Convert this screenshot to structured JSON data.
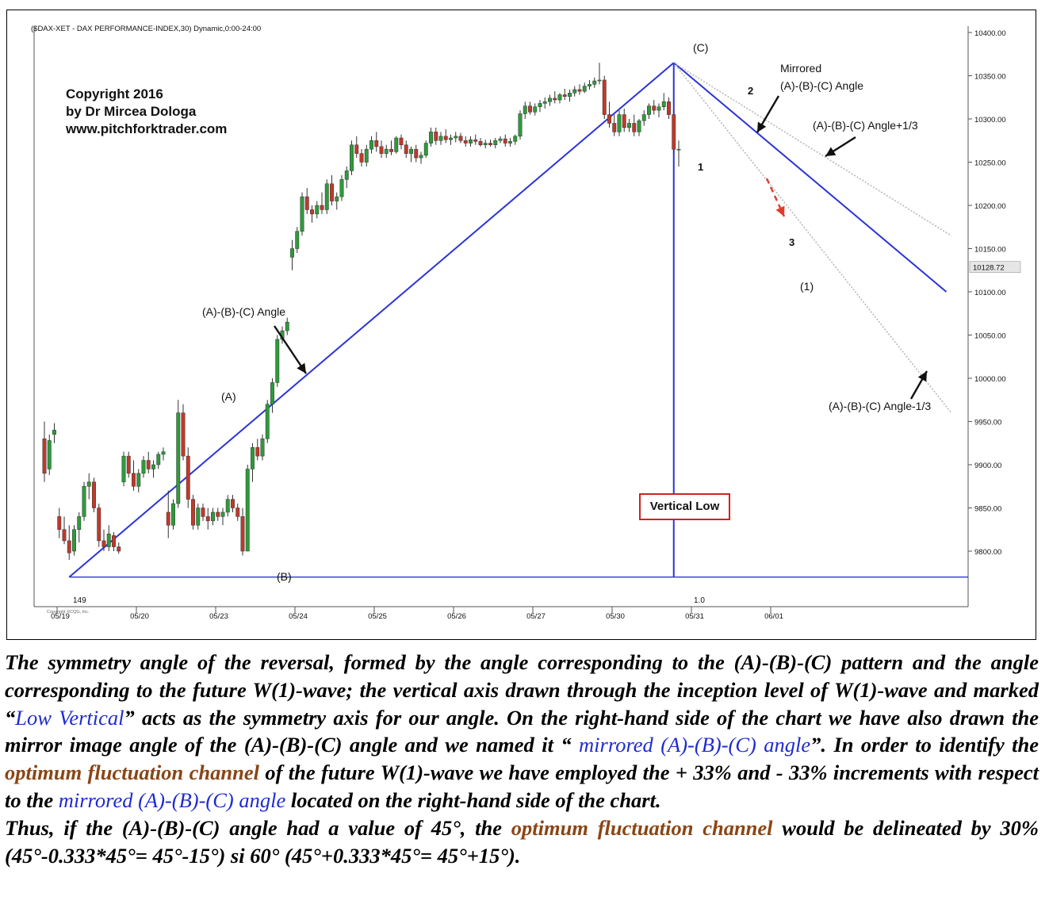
{
  "chart_data": {
    "type": "candlestick",
    "header": "($DAX-XET - DAX PERFORMANCE-INDEX,30) Dynamic,0:00-24:00",
    "copyright": [
      "Copyright 2016",
      "by Dr Mircea Dologa",
      "www.pitchforktrader.com"
    ],
    "y_ticks": [
      10400,
      10350,
      10300,
      10250,
      10200,
      10150,
      10100,
      10050,
      10000,
      9950,
      9900,
      9850,
      9800
    ],
    "y_tick_labels": [
      "10400.00",
      "10350.00",
      "10300.00",
      "10250.00",
      "10200.00",
      "10150.00",
      "10100.00",
      "10050.00",
      "10000.00",
      "9950.00",
      "9900.00",
      "9850.00",
      "9800.00"
    ],
    "ylim": [
      9750,
      10420
    ],
    "last_price_label": "10128.72",
    "last_price": 10128.72,
    "x_tick_labels": [
      "05/19",
      "05/20",
      "05/23",
      "05/24",
      "05/25",
      "05/26",
      "05/27",
      "05/30",
      "05/31",
      "06/01"
    ],
    "x_tick_positions": [
      0,
      16,
      32,
      48,
      64,
      80,
      96,
      112,
      128,
      144
    ],
    "candles": [
      {
        "o": 9930,
        "h": 9950,
        "l": 9880,
        "c": 9890
      },
      {
        "o": 9895,
        "h": 9935,
        "l": 9888,
        "c": 9928
      },
      {
        "o": 9935,
        "h": 9948,
        "l": 9925,
        "c": 9940
      },
      {
        "o": 9840,
        "h": 9850,
        "l": 9815,
        "c": 9825
      },
      {
        "o": 9825,
        "h": 9840,
        "l": 9808,
        "c": 9812
      },
      {
        "o": 9812,
        "h": 9830,
        "l": 9790,
        "c": 9798
      },
      {
        "o": 9800,
        "h": 9830,
        "l": 9795,
        "c": 9825
      },
      {
        "o": 9825,
        "h": 9845,
        "l": 9810,
        "c": 9840
      },
      {
        "o": 9840,
        "h": 9880,
        "l": 9835,
        "c": 9875
      },
      {
        "o": 9875,
        "h": 9890,
        "l": 9860,
        "c": 9880
      },
      {
        "o": 9880,
        "h": 9885,
        "l": 9845,
        "c": 9850
      },
      {
        "o": 9850,
        "h": 9855,
        "l": 9805,
        "c": 9812
      },
      {
        "o": 9812,
        "h": 9825,
        "l": 9800,
        "c": 9805
      },
      {
        "o": 9805,
        "h": 9830,
        "l": 9800,
        "c": 9820
      },
      {
        "o": 9818,
        "h": 9822,
        "l": 9800,
        "c": 9805
      },
      {
        "o": 9805,
        "h": 9810,
        "l": 9797,
        "c": 9800
      },
      {
        "o": 9880,
        "h": 9915,
        "l": 9875,
        "c": 9910
      },
      {
        "o": 9910,
        "h": 9915,
        "l": 9885,
        "c": 9890
      },
      {
        "o": 9890,
        "h": 9905,
        "l": 9870,
        "c": 9875
      },
      {
        "o": 9875,
        "h": 9895,
        "l": 9868,
        "c": 9890
      },
      {
        "o": 9890,
        "h": 9910,
        "l": 9885,
        "c": 9905
      },
      {
        "o": 9905,
        "h": 9915,
        "l": 9890,
        "c": 9895
      },
      {
        "o": 9895,
        "h": 9905,
        "l": 9885,
        "c": 9900
      },
      {
        "o": 9900,
        "h": 9915,
        "l": 9895,
        "c": 9912
      },
      {
        "o": 9912,
        "h": 9920,
        "l": 9905,
        "c": 9915
      },
      {
        "o": 9845,
        "h": 9870,
        "l": 9815,
        "c": 9830
      },
      {
        "o": 9830,
        "h": 9860,
        "l": 9825,
        "c": 9855
      },
      {
        "o": 9855,
        "h": 9975,
        "l": 9850,
        "c": 9960
      },
      {
        "o": 9960,
        "h": 9970,
        "l": 9905,
        "c": 9910
      },
      {
        "o": 9910,
        "h": 9920,
        "l": 9850,
        "c": 9860
      },
      {
        "o": 9860,
        "h": 9865,
        "l": 9825,
        "c": 9830
      },
      {
        "o": 9830,
        "h": 9855,
        "l": 9825,
        "c": 9850
      },
      {
        "o": 9850,
        "h": 9855,
        "l": 9835,
        "c": 9840
      },
      {
        "o": 9840,
        "h": 9850,
        "l": 9825,
        "c": 9835
      },
      {
        "o": 9835,
        "h": 9850,
        "l": 9830,
        "c": 9845
      },
      {
        "o": 9845,
        "h": 9850,
        "l": 9835,
        "c": 9840
      },
      {
        "o": 9840,
        "h": 9850,
        "l": 9830,
        "c": 9845
      },
      {
        "o": 9845,
        "h": 9865,
        "l": 9840,
        "c": 9860
      },
      {
        "o": 9860,
        "h": 9865,
        "l": 9845,
        "c": 9850
      },
      {
        "o": 9850,
        "h": 9855,
        "l": 9835,
        "c": 9840
      },
      {
        "o": 9840,
        "h": 9850,
        "l": 9795,
        "c": 9800
      },
      {
        "o": 9800,
        "h": 9900,
        "l": 9800,
        "c": 9895
      },
      {
        "o": 9895,
        "h": 9925,
        "l": 9880,
        "c": 9920
      },
      {
        "o": 9920,
        "h": 9930,
        "l": 9905,
        "c": 9910
      },
      {
        "o": 9910,
        "h": 9935,
        "l": 9905,
        "c": 9930
      },
      {
        "o": 9930,
        "h": 9975,
        "l": 9925,
        "c": 9970
      },
      {
        "o": 9970,
        "h": 10000,
        "l": 9960,
        "c": 9995
      },
      {
        "o": 9995,
        "h": 10050,
        "l": 9990,
        "c": 10045
      },
      {
        "o": 10045,
        "h": 10060,
        "l": 10040,
        "c": 10055
      },
      {
        "o": 10055,
        "h": 10070,
        "l": 10050,
        "c": 10065
      },
      {
        "o": 10140,
        "h": 10160,
        "l": 10125,
        "c": 10150
      },
      {
        "o": 10150,
        "h": 10175,
        "l": 10145,
        "c": 10170
      },
      {
        "o": 10170,
        "h": 10215,
        "l": 10165,
        "c": 10210
      },
      {
        "o": 10210,
        "h": 10220,
        "l": 10190,
        "c": 10195
      },
      {
        "o": 10195,
        "h": 10200,
        "l": 10180,
        "c": 10190
      },
      {
        "o": 10190,
        "h": 10205,
        "l": 10185,
        "c": 10200
      },
      {
        "o": 10200,
        "h": 10215,
        "l": 10190,
        "c": 10195
      },
      {
        "o": 10195,
        "h": 10230,
        "l": 10190,
        "c": 10225
      },
      {
        "o": 10225,
        "h": 10235,
        "l": 10200,
        "c": 10205
      },
      {
        "o": 10205,
        "h": 10215,
        "l": 10195,
        "c": 10210
      },
      {
        "o": 10210,
        "h": 10235,
        "l": 10205,
        "c": 10230
      },
      {
        "o": 10230,
        "h": 10245,
        "l": 10220,
        "c": 10240
      },
      {
        "o": 10240,
        "h": 10275,
        "l": 10235,
        "c": 10270
      },
      {
        "o": 10270,
        "h": 10280,
        "l": 10255,
        "c": 10260
      },
      {
        "o": 10260,
        "h": 10265,
        "l": 10245,
        "c": 10250
      },
      {
        "o": 10250,
        "h": 10270,
        "l": 10245,
        "c": 10265
      },
      {
        "o": 10265,
        "h": 10280,
        "l": 10260,
        "c": 10275
      },
      {
        "o": 10275,
        "h": 10285,
        "l": 10262,
        "c": 10268
      },
      {
        "o": 10268,
        "h": 10275,
        "l": 10255,
        "c": 10260
      },
      {
        "o": 10260,
        "h": 10270,
        "l": 10255,
        "c": 10265
      },
      {
        "o": 10265,
        "h": 10275,
        "l": 10258,
        "c": 10262
      },
      {
        "o": 10262,
        "h": 10280,
        "l": 10260,
        "c": 10278
      },
      {
        "o": 10278,
        "h": 10282,
        "l": 10265,
        "c": 10270
      },
      {
        "o": 10270,
        "h": 10275,
        "l": 10255,
        "c": 10260
      },
      {
        "o": 10260,
        "h": 10268,
        "l": 10250,
        "c": 10265
      },
      {
        "o": 10265,
        "h": 10270,
        "l": 10250,
        "c": 10255
      },
      {
        "o": 10255,
        "h": 10262,
        "l": 10248,
        "c": 10258
      },
      {
        "o": 10258,
        "h": 10275,
        "l": 10255,
        "c": 10272
      },
      {
        "o": 10272,
        "h": 10290,
        "l": 10268,
        "c": 10285
      },
      {
        "o": 10285,
        "h": 10290,
        "l": 10270,
        "c": 10275
      },
      {
        "o": 10275,
        "h": 10285,
        "l": 10270,
        "c": 10280
      },
      {
        "o": 10280,
        "h": 10288,
        "l": 10272,
        "c": 10276
      },
      {
        "o": 10276,
        "h": 10282,
        "l": 10270,
        "c": 10278
      },
      {
        "o": 10278,
        "h": 10285,
        "l": 10273,
        "c": 10280
      },
      {
        "o": 10280,
        "h": 10284,
        "l": 10272,
        "c": 10275
      },
      {
        "o": 10275,
        "h": 10280,
        "l": 10268,
        "c": 10272
      },
      {
        "o": 10272,
        "h": 10280,
        "l": 10268,
        "c": 10276
      },
      {
        "o": 10276,
        "h": 10282,
        "l": 10270,
        "c": 10274
      },
      {
        "o": 10274,
        "h": 10278,
        "l": 10268,
        "c": 10270
      },
      {
        "o": 10270,
        "h": 10276,
        "l": 10266,
        "c": 10272
      },
      {
        "o": 10272,
        "h": 10276,
        "l": 10268,
        "c": 10270
      },
      {
        "o": 10270,
        "h": 10278,
        "l": 10266,
        "c": 10275
      },
      {
        "o": 10275,
        "h": 10280,
        "l": 10272,
        "c": 10277
      },
      {
        "o": 10277,
        "h": 10282,
        "l": 10268,
        "c": 10272
      },
      {
        "o": 10272,
        "h": 10278,
        "l": 10268,
        "c": 10274
      },
      {
        "o": 10274,
        "h": 10282,
        "l": 10270,
        "c": 10280
      },
      {
        "o": 10280,
        "h": 10310,
        "l": 10276,
        "c": 10306
      },
      {
        "o": 10306,
        "h": 10320,
        "l": 10300,
        "c": 10315
      },
      {
        "o": 10315,
        "h": 10320,
        "l": 10305,
        "c": 10308
      },
      {
        "o": 10308,
        "h": 10318,
        "l": 10304,
        "c": 10314
      },
      {
        "o": 10314,
        "h": 10322,
        "l": 10308,
        "c": 10318
      },
      {
        "o": 10318,
        "h": 10325,
        "l": 10312,
        "c": 10320
      },
      {
        "o": 10320,
        "h": 10328,
        "l": 10315,
        "c": 10324
      },
      {
        "o": 10324,
        "h": 10332,
        "l": 10318,
        "c": 10322
      },
      {
        "o": 10322,
        "h": 10330,
        "l": 10318,
        "c": 10328
      },
      {
        "o": 10328,
        "h": 10335,
        "l": 10322,
        "c": 10326
      },
      {
        "o": 10326,
        "h": 10334,
        "l": 10320,
        "c": 10330
      },
      {
        "o": 10330,
        "h": 10338,
        "l": 10326,
        "c": 10334
      },
      {
        "o": 10334,
        "h": 10340,
        "l": 10328,
        "c": 10332
      },
      {
        "o": 10332,
        "h": 10342,
        "l": 10330,
        "c": 10338
      },
      {
        "o": 10338,
        "h": 10345,
        "l": 10334,
        "c": 10340
      },
      {
        "o": 10340,
        "h": 10348,
        "l": 10336,
        "c": 10344
      },
      {
        "o": 10344,
        "h": 10365,
        "l": 10340,
        "c": 10345
      },
      {
        "o": 10345,
        "h": 10350,
        "l": 10300,
        "c": 10305
      },
      {
        "o": 10305,
        "h": 10320,
        "l": 10290,
        "c": 10295
      },
      {
        "o": 10295,
        "h": 10305,
        "l": 10280,
        "c": 10285
      },
      {
        "o": 10285,
        "h": 10310,
        "l": 10280,
        "c": 10305
      },
      {
        "o": 10305,
        "h": 10312,
        "l": 10285,
        "c": 10290
      },
      {
        "o": 10290,
        "h": 10300,
        "l": 10285,
        "c": 10295
      },
      {
        "o": 10295,
        "h": 10305,
        "l": 10280,
        "c": 10285
      },
      {
        "o": 10285,
        "h": 10300,
        "l": 10280,
        "c": 10298
      },
      {
        "o": 10298,
        "h": 10310,
        "l": 10292,
        "c": 10305
      },
      {
        "o": 10305,
        "h": 10318,
        "l": 10300,
        "c": 10315
      },
      {
        "o": 10315,
        "h": 10322,
        "l": 10305,
        "c": 10310
      },
      {
        "o": 10310,
        "h": 10318,
        "l": 10302,
        "c": 10314
      },
      {
        "o": 10314,
        "h": 10330,
        "l": 10310,
        "c": 10320
      },
      {
        "o": 10320,
        "h": 10325,
        "l": 10300,
        "c": 10305
      },
      {
        "o": 10305,
        "h": 10310,
        "l": 10260,
        "c": 10265
      },
      {
        "o": 10265,
        "h": 10275,
        "l": 10245,
        "c": 10265
      }
    ],
    "trend_lines": [
      {
        "name": "(A)-(B)-(C) Angle",
        "from": [
          5,
          9770
        ],
        "to": [
          127,
          10365
        ],
        "color": "#2a35d8"
      },
      {
        "name": "Mirrored (A)-(B)-(C) Angle",
        "from": [
          127,
          10365
        ],
        "to": [
          182,
          10100
        ],
        "color": "#2a35d8"
      },
      {
        "name": "(A)-(B)-(C) Angle+1/3",
        "from": [
          127,
          10365
        ],
        "to": [
          183,
          10165
        ],
        "color": "#b8b8b8"
      },
      {
        "name": "(A)-(B)-(C) Angle-1/3",
        "from": [
          127,
          10365
        ],
        "to": [
          183,
          9960
        ],
        "color": "#b8b8b8"
      }
    ],
    "vertical_low": {
      "x": 127,
      "top": 10365,
      "bottom": 9770
    },
    "base_line_y": 9770
  },
  "annotations": {
    "C": "(C)",
    "A": "(A)",
    "B": "(B)",
    "mirrored_1": "Mirrored",
    "mirrored_2": "(A)-(B)-(C) Angle",
    "angle_plus": "(A)-(B)-(C) Angle+1/3",
    "angle_minus": "(A)-(B)-(C) Angle-1/3",
    "angle_main": "(A)-(B)-(C) Angle",
    "wave_1": "1",
    "wave_2": "2",
    "wave_3": "3",
    "wave_paren_1": "(1)",
    "bar_149": "149",
    "bar_10": "1.0",
    "vertical_low": "Vertical Low",
    "tiny_copyright": "Copyright ©CQG, Inc."
  },
  "colors": {
    "up": "#2e9b3a",
    "down": "#c0392b",
    "line": "#2a35d8",
    "angle_band": "#b8b8b8",
    "arrow_red": "#e03a2a",
    "caption_blue": "#1f2bd0",
    "caption_brown": "#8b4513"
  },
  "caption": {
    "p1": "The symmetry angle of the reversal, formed by the angle corresponding to the (A)-(B)-(C) pattern and the angle corresponding to the future W(1)-wave; the vertical axis drawn through the inception level of W(1)-wave and marked “",
    "p1_blue": "Low Vertical",
    "p2": "” acts as the symmetry axis for our angle. On the right-hand side of the chart we have also drawn the mirror image angle of the (A)-(B)-(C) angle and we named it “ ",
    "p2_blue": "mirrored (A)-(B)-(C) angle",
    "p3": "”. In order to identify the ",
    "p3_brown": "optimum fluctuation channel",
    "p4": " of the future W(1)-wave we have employed the + 33% and  - 33% increments with respect to the ",
    "p4_blue": "mirrored (A)-(B)-(C) angle",
    "p5": " located on the right-hand side of the chart.",
    "p6": "Thus, if the (A)-(B)-(C) angle had a value of 45°, the ",
    "p6_brown": "optimum fluctuation channel",
    "p7": " would be delineated by 30% (45°-0.333*45°= 45°-15°) si 60° (45°+0.333*45°= 45°+15°)."
  }
}
